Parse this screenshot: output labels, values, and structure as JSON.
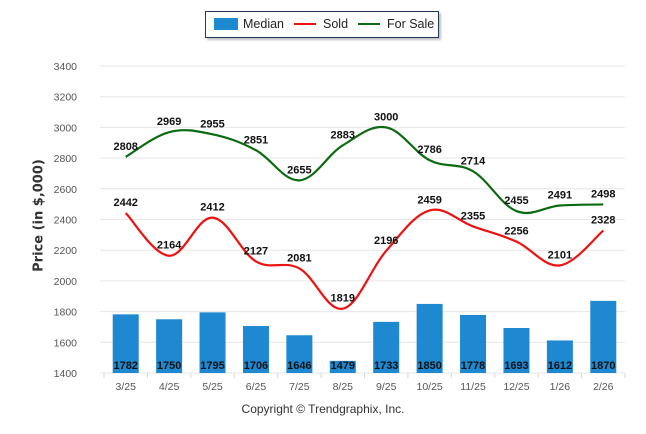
{
  "chart_data": {
    "type": "bar",
    "title": "",
    "xlabel": "",
    "ylabel": "Price (in $,000)",
    "ylim": [
      1400,
      3400
    ],
    "yticks": [
      1400,
      1600,
      1800,
      2000,
      2200,
      2400,
      2600,
      2800,
      3000,
      3200,
      3400
    ],
    "grid": true,
    "legend_position": "top-center",
    "categories": [
      "3/25",
      "4/25",
      "5/25",
      "6/25",
      "7/25",
      "8/25",
      "9/25",
      "10/25",
      "11/25",
      "12/25",
      "1/26",
      "2/26"
    ],
    "series": [
      {
        "name": "Median",
        "type": "bar",
        "color": "#1e88d0",
        "values": [
          1782,
          1750,
          1795,
          1706,
          1646,
          1479,
          1733,
          1850,
          1778,
          1693,
          1612,
          1870
        ]
      },
      {
        "name": "Sold",
        "type": "line",
        "color": "#ee1111",
        "values": [
          2442,
          2164,
          2412,
          2127,
          2081,
          1819,
          2196,
          2459,
          2355,
          2256,
          2101,
          2328
        ]
      },
      {
        "name": "For Sale",
        "type": "line",
        "color": "#0b6b12",
        "values": [
          2808,
          2969,
          2955,
          2851,
          2655,
          2883,
          3000,
          2786,
          2714,
          2455,
          2491,
          2498
        ]
      }
    ]
  },
  "legend": {
    "items": [
      {
        "label": "Median",
        "color": "#1e88d0"
      },
      {
        "label": "Sold",
        "color": "#ee1111"
      },
      {
        "label": "For Sale",
        "color": "#0b6b12"
      }
    ]
  },
  "footer": {
    "copyright": "Copyright © Trendgraphix, Inc."
  }
}
